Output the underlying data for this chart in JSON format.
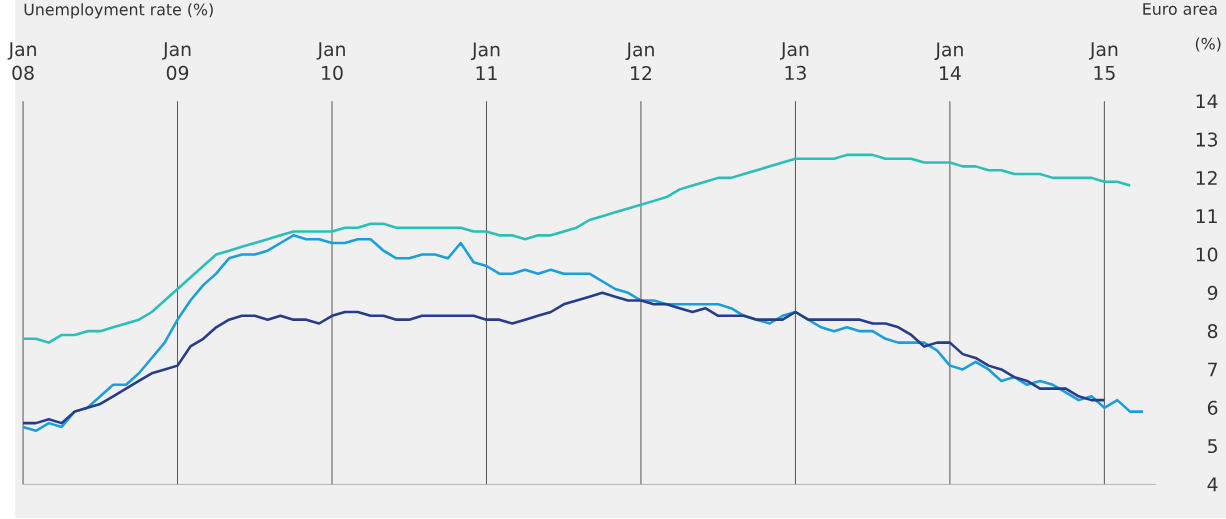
{
  "chart_data": {
    "type": "line",
    "title": "Unemployment rate (%)",
    "subtitle": "Euro area",
    "ylabel": "(%)",
    "x": [
      "2008-01",
      "2008-02",
      "2008-03",
      "2008-04",
      "2008-05",
      "2008-06",
      "2008-07",
      "2008-08",
      "2008-09",
      "2008-10",
      "2008-11",
      "2008-12",
      "2009-01",
      "2009-02",
      "2009-03",
      "2009-04",
      "2009-05",
      "2009-06",
      "2009-07",
      "2009-08",
      "2009-09",
      "2009-10",
      "2009-11",
      "2009-12",
      "2010-01",
      "2010-02",
      "2010-03",
      "2010-04",
      "2010-05",
      "2010-06",
      "2010-07",
      "2010-08",
      "2010-09",
      "2010-10",
      "2010-11",
      "2010-12",
      "2011-01",
      "2011-02",
      "2011-03",
      "2011-04",
      "2011-05",
      "2011-06",
      "2011-07",
      "2011-08",
      "2011-09",
      "2011-10",
      "2011-11",
      "2011-12",
      "2012-01",
      "2012-02",
      "2012-03",
      "2012-04",
      "2012-05",
      "2012-06",
      "2012-07",
      "2012-08",
      "2012-09",
      "2012-10",
      "2012-11",
      "2012-12",
      "2013-01",
      "2013-02",
      "2013-03",
      "2013-04",
      "2013-05",
      "2013-06",
      "2013-07",
      "2013-08",
      "2013-09",
      "2013-10",
      "2013-11",
      "2013-12",
      "2014-01",
      "2014-02",
      "2014-03",
      "2014-04",
      "2014-05",
      "2014-06",
      "2014-07",
      "2014-08",
      "2014-09",
      "2014-10",
      "2014-11",
      "2014-12",
      "2015-01",
      "2015-02",
      "2015-03",
      "2015-04"
    ],
    "series": [
      {
        "color": "#2bbfb8",
        "values": [
          7.8,
          7.8,
          7.7,
          7.9,
          7.9,
          8.0,
          8.0,
          8.1,
          8.2,
          8.3,
          8.5,
          8.8,
          9.1,
          9.4,
          9.7,
          10.0,
          10.1,
          10.2,
          10.3,
          10.4,
          10.5,
          10.6,
          10.6,
          10.6,
          10.6,
          10.7,
          10.7,
          10.8,
          10.8,
          10.7,
          10.7,
          10.7,
          10.7,
          10.7,
          10.7,
          10.6,
          10.6,
          10.5,
          10.5,
          10.4,
          10.5,
          10.5,
          10.6,
          10.7,
          10.9,
          11.0,
          11.1,
          11.2,
          11.3,
          11.4,
          11.5,
          11.7,
          11.8,
          11.9,
          12.0,
          12.0,
          12.1,
          12.2,
          12.3,
          12.4,
          12.5,
          12.5,
          12.5,
          12.5,
          12.6,
          12.6,
          12.6,
          12.5,
          12.5,
          12.5,
          12.4,
          12.4,
          12.4,
          12.3,
          12.3,
          12.2,
          12.2,
          12.1,
          12.1,
          12.1,
          12.0,
          12.0,
          12.0,
          12.0,
          11.9,
          11.9,
          11.8,
          null
        ]
      },
      {
        "color": "#1a9fdb",
        "values": [
          5.5,
          5.4,
          5.6,
          5.5,
          5.9,
          6.0,
          6.3,
          6.6,
          6.6,
          6.9,
          7.3,
          7.7,
          8.3,
          8.8,
          9.2,
          9.5,
          9.9,
          10.0,
          10.0,
          10.1,
          10.3,
          10.5,
          10.4,
          10.4,
          10.3,
          10.3,
          10.4,
          10.4,
          10.1,
          9.9,
          9.9,
          10.0,
          10.0,
          9.9,
          10.3,
          9.8,
          9.7,
          9.5,
          9.5,
          9.6,
          9.5,
          9.6,
          9.5,
          9.5,
          9.5,
          9.3,
          9.1,
          9.0,
          8.8,
          8.8,
          8.7,
          8.7,
          8.7,
          8.7,
          8.7,
          8.6,
          8.4,
          8.3,
          8.2,
          8.4,
          8.5,
          8.3,
          8.1,
          8.0,
          8.1,
          8.0,
          8.0,
          7.8,
          7.7,
          7.7,
          7.7,
          7.5,
          7.1,
          7.0,
          7.2,
          7.0,
          6.7,
          6.8,
          6.6,
          6.7,
          6.6,
          6.4,
          6.2,
          6.3,
          6.0,
          6.2,
          5.9,
          5.9
        ]
      },
      {
        "color": "#253d8a",
        "values": [
          5.6,
          5.6,
          5.7,
          5.6,
          5.9,
          6.0,
          6.1,
          6.3,
          6.5,
          6.7,
          6.9,
          7.0,
          7.1,
          7.6,
          7.8,
          8.1,
          8.3,
          8.4,
          8.4,
          8.3,
          8.4,
          8.3,
          8.3,
          8.2,
          8.4,
          8.5,
          8.5,
          8.4,
          8.4,
          8.3,
          8.3,
          8.4,
          8.4,
          8.4,
          8.4,
          8.4,
          8.3,
          8.3,
          8.2,
          8.3,
          8.4,
          8.5,
          8.7,
          8.8,
          8.9,
          9.0,
          8.9,
          8.8,
          8.8,
          8.7,
          8.7,
          8.6,
          8.5,
          8.6,
          8.4,
          8.4,
          8.4,
          8.3,
          8.3,
          8.3,
          8.5,
          8.3,
          8.3,
          8.3,
          8.3,
          8.3,
          8.2,
          8.2,
          8.1,
          7.9,
          7.6,
          7.7,
          7.7,
          7.4,
          7.3,
          7.1,
          7.0,
          6.8,
          6.7,
          6.5,
          6.5,
          6.5,
          6.3,
          6.2,
          6.2,
          null,
          null,
          null
        ]
      }
    ],
    "xlim": [
      "2008-01",
      "2015-05"
    ],
    "xticks": [
      {
        "value": "2008-01",
        "label": "Jan 08"
      },
      {
        "value": "2009-01",
        "label": "Jan 09"
      },
      {
        "value": "2010-01",
        "label": "Jan 10"
      },
      {
        "value": "2011-01",
        "label": "Jan 11"
      },
      {
        "value": "2012-01",
        "label": "Jan 12"
      },
      {
        "value": "2013-01",
        "label": "Jan 13"
      },
      {
        "value": "2014-01",
        "label": "Jan 14"
      },
      {
        "value": "2015-01",
        "label": "Jan 15"
      }
    ],
    "ylim": [
      4,
      14
    ],
    "yticks": [
      4,
      5,
      6,
      7,
      8,
      9,
      10,
      11,
      12,
      13,
      14
    ],
    "grid": "x"
  }
}
